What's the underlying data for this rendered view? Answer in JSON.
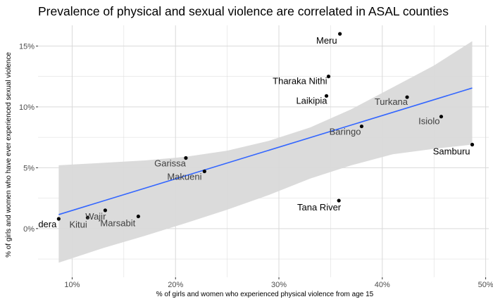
{
  "chart_data": {
    "type": "scatter",
    "title": "Prevalence of physical and sexual violence are correlated in ASAL counties",
    "xlabel": "% of girls and women who experienced physical violence from age 15",
    "ylabel": "% of girls and women who have ever experienced sexual violence",
    "xlim": [
      0.067,
      0.503
    ],
    "ylim": [
      -0.04,
      0.167
    ],
    "xticks": [
      0.1,
      0.2,
      0.3,
      0.4,
      0.5
    ],
    "xtick_labels": [
      "10%",
      "20%",
      "30%",
      "40%",
      "50%"
    ],
    "yticks": [
      0.0,
      0.05,
      0.1,
      0.15
    ],
    "ytick_labels": [
      "0%",
      "5%",
      "10%",
      "15%"
    ],
    "grid": true,
    "points": [
      {
        "label": "Meru",
        "x": 0.359,
        "y": 0.16
      },
      {
        "label": "Tharaka Nithi",
        "x": 0.348,
        "y": 0.125
      },
      {
        "label": "Laikipia",
        "x": 0.346,
        "y": 0.109
      },
      {
        "label": "Turkana",
        "x": 0.424,
        "y": 0.108
      },
      {
        "label": "Isiolo",
        "x": 0.457,
        "y": 0.092
      },
      {
        "label": "Baringo",
        "x": 0.38,
        "y": 0.084
      },
      {
        "label": "Samburu",
        "x": 0.487,
        "y": 0.069
      },
      {
        "label": "Garissa",
        "x": 0.21,
        "y": 0.058
      },
      {
        "label": "Makueni",
        "x": 0.228,
        "y": 0.047
      },
      {
        "label": "Tana River",
        "x": 0.358,
        "y": 0.023
      },
      {
        "label": "Wajir",
        "x": 0.132,
        "y": 0.015
      },
      {
        "label": "Marsabit",
        "x": 0.164,
        "y": 0.01
      },
      {
        "label": "Kitui",
        "x": 0.115,
        "y": 0.009
      },
      {
        "label": "dera",
        "x": 0.087,
        "y": 0.008
      }
    ],
    "trend": {
      "type": "linear",
      "x": [
        0.087,
        0.487
      ],
      "y": [
        0.0115,
        0.1155
      ]
    },
    "confidence_band": {
      "x": [
        0.087,
        0.13,
        0.17,
        0.21,
        0.25,
        0.29,
        0.33,
        0.37,
        0.41,
        0.45,
        0.487
      ],
      "lower": [
        -0.028,
        -0.016,
        -0.006,
        0.0045,
        0.0155,
        0.0275,
        0.041,
        0.052,
        0.061,
        0.0655,
        0.069
      ],
      "upper": [
        0.052,
        0.054,
        0.056,
        0.059,
        0.064,
        0.072,
        0.083,
        0.098,
        0.116,
        0.134,
        0.154
      ]
    },
    "colors": {
      "trend": "#3366ff",
      "band": "#d9d9d9",
      "point": "#000000",
      "grid": "#d9d9d9",
      "label_dark": "#000000",
      "label_muted": "#404040"
    }
  }
}
